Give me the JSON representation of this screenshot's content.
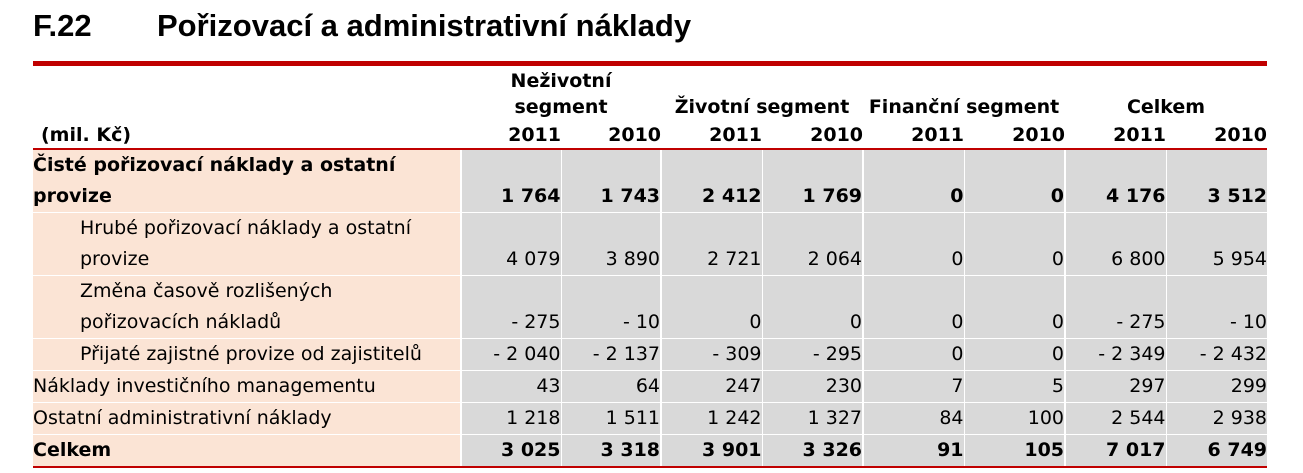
{
  "title": {
    "number": "F.22",
    "text": "Pořizovací a administrativní náklady"
  },
  "header": {
    "unit": "(mil. Kč)",
    "groups": [
      {
        "line1": "Neživotní",
        "line2": "segment"
      },
      {
        "line1": "",
        "line2": "Životní segment"
      },
      {
        "line1": "",
        "line2": "Finanční segment"
      },
      {
        "line1": "",
        "line2": "Celkem"
      }
    ],
    "years": [
      "2011",
      "2010",
      "2011",
      "2010",
      "2011",
      "2010",
      "2011",
      "2010"
    ]
  },
  "rows": [
    {
      "label": [
        "Čisté pořizovací náklady a ostatní provize"
      ],
      "bold": true,
      "indent": false,
      "values": [
        "1 764",
        "1 743",
        "2 412",
        "1 769",
        "0",
        "0",
        "4 176",
        "3 512"
      ]
    },
    {
      "label": [
        "Hrubé pořizovací náklady a ostatní",
        "provize"
      ],
      "bold": false,
      "indent": true,
      "values": [
        "4 079",
        "3 890",
        "2 721",
        "2 064",
        "0",
        "0",
        "6 800",
        "5 954"
      ]
    },
    {
      "label": [
        "Změna časově rozlišených",
        "pořizovacích nákladů"
      ],
      "bold": false,
      "indent": true,
      "values": [
        "- 275",
        "- 10",
        "0",
        "0",
        "0",
        "0",
        "- 275",
        "- 10"
      ]
    },
    {
      "label": [
        "Přijaté zajistné provize od zajistitelů"
      ],
      "bold": false,
      "indent": true,
      "values": [
        "- 2 040",
        "- 2 137",
        "- 309",
        "- 295",
        "0",
        "0",
        "- 2 349",
        "- 2 432"
      ]
    },
    {
      "label": [
        "Náklady investičního managementu"
      ],
      "bold": false,
      "indent": false,
      "values": [
        "43",
        "64",
        "247",
        "230",
        "7",
        "5",
        "297",
        "299"
      ]
    },
    {
      "label": [
        "Ostatní administrativní náklady"
      ],
      "bold": false,
      "indent": false,
      "values": [
        "1 218",
        "1 511",
        "1 242",
        "1 327",
        "84",
        "100",
        "2 544",
        "2 938"
      ]
    },
    {
      "label": [
        "Celkem"
      ],
      "bold": true,
      "indent": false,
      "values": [
        "3 025",
        "3 318",
        "3 901",
        "3 326",
        "91",
        "105",
        "7 017",
        "6 749"
      ]
    }
  ]
}
